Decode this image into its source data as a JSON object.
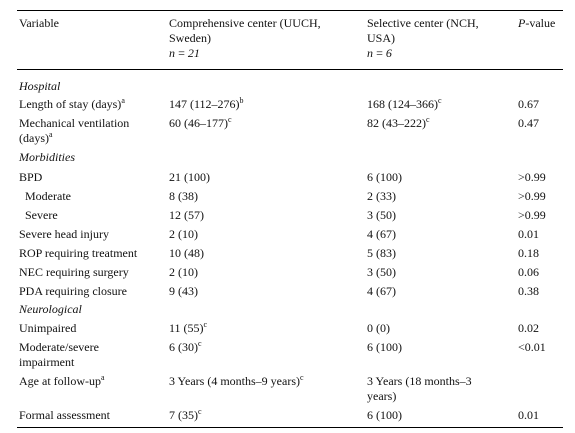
{
  "header": {
    "variable": "Variable",
    "col1_line1": "Comprehensive center (UUCH,",
    "col1_line2": "Sweden)",
    "col1_n": "n = 21",
    "col2_line1": "Selective center (NCH,",
    "col2_line2": "USA)",
    "col2_n": "n = 6",
    "pvalue_p": "P",
    "pvalue_rest": "-value"
  },
  "sections": {
    "hospital": "Hospital",
    "morbidities": "Morbidities",
    "neurological": "Neurological"
  },
  "rows": {
    "los": {
      "label": "Length of stay (days)",
      "label_sup": "a",
      "c1": "147 (112–276)",
      "c1_sup": "b",
      "c2": "168 (124–366)",
      "c2_sup": "c",
      "p": "0.67"
    },
    "mv": {
      "label_line1": "Mechanical ventilation",
      "label_line2": "(days)",
      "label_sup": "a",
      "c1": "60 (46–177)",
      "c1_sup": "c",
      "c2": "82 (43–222)",
      "c2_sup": "c",
      "p": "0.47"
    },
    "bpd": {
      "label": "BPD",
      "c1": "21 (100)",
      "c2": "6 (100)",
      "p": ">0.99"
    },
    "moderate": {
      "label": "Moderate",
      "c1": "8 (38)",
      "c2": "2 (33)",
      "p": ">0.99"
    },
    "severe": {
      "label": "Severe",
      "c1": "12 (57)",
      "c2": "3 (50)",
      "p": ">0.99"
    },
    "head": {
      "label": "Severe head injury",
      "c1": "2 (10)",
      "c2": "4 (67)",
      "p": "0.01"
    },
    "rop": {
      "label": "ROP requiring treatment",
      "c1": "10 (48)",
      "c2": "5 (83)",
      "p": "0.18"
    },
    "nec": {
      "label": "NEC requiring surgery",
      "c1": "2 (10)",
      "c2": "3 (50)",
      "p": "0.06"
    },
    "pda": {
      "label": "PDA requiring closure",
      "c1": "9 (43)",
      "c2": "4 (67)",
      "p": "0.38"
    },
    "unimpaired": {
      "label": "Unimpaired",
      "c1": "11 (55)",
      "c1_sup": "c",
      "c2": "0 (0)",
      "p": "0.02"
    },
    "modsev": {
      "label_line1": "Moderate/severe",
      "label_line2": "impairment",
      "c1": "6 (30)",
      "c1_sup": "c",
      "c2": "6 (100)",
      "p": "<0.01"
    },
    "age": {
      "label": "Age at follow-up",
      "label_sup": "a",
      "c1": "3 Years (4 months–9 years)",
      "c1_sup": "c",
      "c2_line1": "3 Years (18 months–3",
      "c2_line2": "years)",
      "p": ""
    },
    "formal": {
      "label": "Formal assessment",
      "c1": "7 (35)",
      "c1_sup": "c",
      "c2": "6 (100)",
      "p": "0.01"
    }
  }
}
